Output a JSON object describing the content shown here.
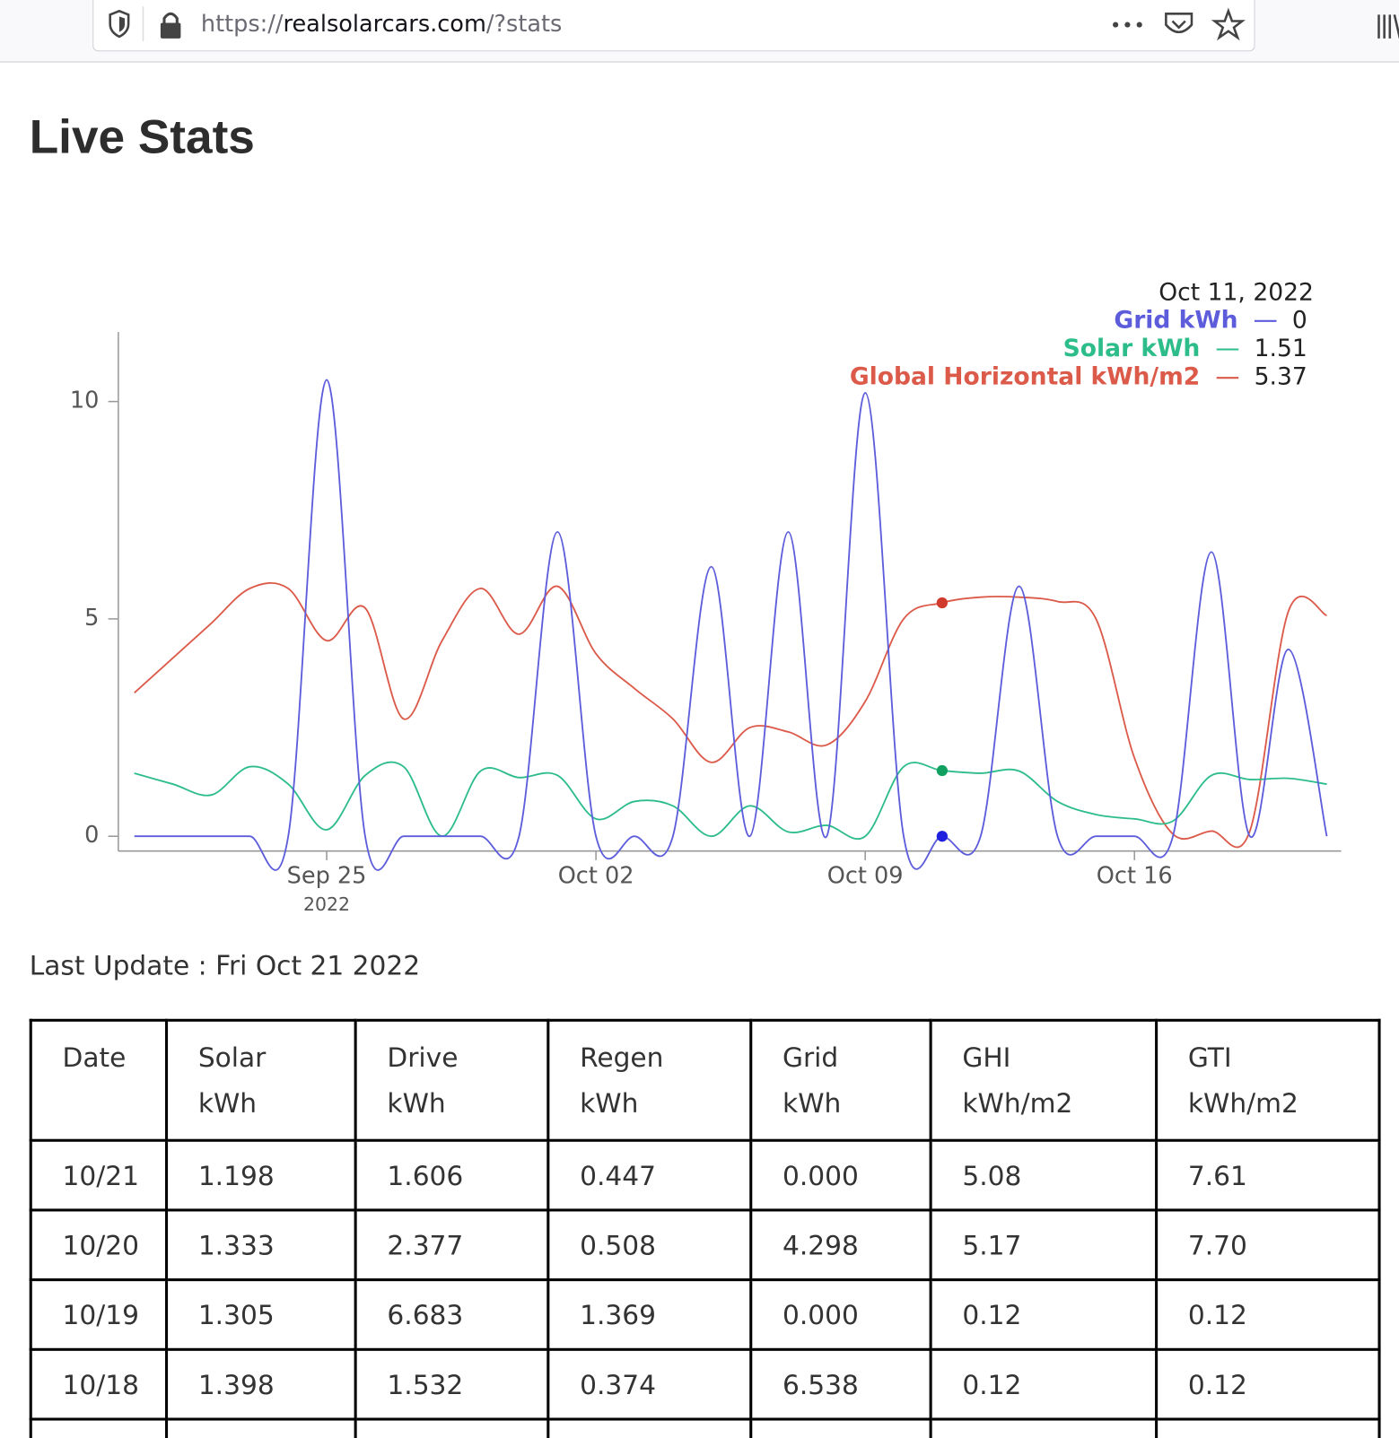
{
  "browser": {
    "url_scheme": "https://",
    "url_host": "realsolarcars.com",
    "url_path": "/?stats"
  },
  "page": {
    "title": "Live Stats",
    "last_update": "Last Update : Fri Oct 21 2022"
  },
  "chart_data": {
    "type": "line",
    "x": [
      "2022-09-20",
      "2022-09-21",
      "2022-09-22",
      "2022-09-23",
      "2022-09-24",
      "2022-09-25",
      "2022-09-26",
      "2022-09-27",
      "2022-09-28",
      "2022-09-29",
      "2022-09-30",
      "2022-10-01",
      "2022-10-02",
      "2022-10-03",
      "2022-10-04",
      "2022-10-05",
      "2022-10-06",
      "2022-10-07",
      "2022-10-08",
      "2022-10-09",
      "2022-10-10",
      "2022-10-11",
      "2022-10-12",
      "2022-10-13",
      "2022-10-14",
      "2022-10-15",
      "2022-10-16",
      "2022-10-17",
      "2022-10-18",
      "2022-10-19",
      "2022-10-20",
      "2022-10-21"
    ],
    "series": [
      {
        "name": "Grid kWh",
        "color": "#5d5ddc",
        "hover_color": "#1f1fe0",
        "values": [
          0,
          0,
          0,
          0,
          0,
          10.5,
          0,
          0,
          0,
          0,
          0,
          7.0,
          0,
          0,
          0,
          6.2,
          0,
          7.0,
          0,
          10.2,
          0,
          0,
          0,
          5.75,
          0,
          0,
          0,
          0,
          6.538,
          0,
          4.298,
          0
        ]
      },
      {
        "name": "Solar kWh",
        "color": "#2dbd8a",
        "hover_color": "#10a060",
        "values": [
          1.45,
          1.2,
          0.95,
          1.6,
          1.2,
          0.15,
          1.4,
          1.6,
          0.0,
          1.5,
          1.35,
          1.4,
          0.4,
          0.8,
          0.7,
          0.0,
          0.7,
          0.1,
          0.25,
          0.0,
          1.6,
          1.51,
          1.45,
          1.5,
          0.8,
          0.5,
          0.4,
          0.35,
          1.398,
          1.305,
          1.333,
          1.198
        ]
      },
      {
        "name": "Global Horizontal kWh/m2",
        "color": "#dc5a4a",
        "hover_color": "#d03a2c",
        "values": [
          3.3,
          4.1,
          4.9,
          5.7,
          5.7,
          4.5,
          5.25,
          2.7,
          4.5,
          5.7,
          4.65,
          5.75,
          4.2,
          3.4,
          2.7,
          1.7,
          2.5,
          2.4,
          2.1,
          3.1,
          5.0,
          5.37,
          5.5,
          5.5,
          5.4,
          5.0,
          1.8,
          0.05,
          0.12,
          0.12,
          5.17,
          5.08
        ]
      }
    ],
    "xlim": [
      "2022-09-19T14:00:00Z",
      "2022-10-21T09:00:00Z"
    ],
    "xticks": [
      {
        "value": "2022-09-25",
        "label": "Sep 25"
      },
      {
        "value": "2022-10-02",
        "label": "Oct 02"
      },
      {
        "value": "2022-10-09",
        "label": "Oct 09"
      },
      {
        "value": "2022-10-16",
        "label": "Oct 16"
      }
    ],
    "xtick_year": "2022",
    "ylim": [
      -0.34,
      11.6
    ],
    "yticks": [
      0,
      5,
      10
    ],
    "hover": {
      "index": 21,
      "label": "Oct 11, 2022"
    }
  },
  "table": {
    "columns": [
      "Date",
      "Solar kWh",
      "Drive kWh",
      "Regen kWh",
      "Grid kWh",
      "GHI kWh/m2",
      "GTI kWh/m2"
    ],
    "rows": [
      [
        "10/21",
        "1.198",
        "1.606",
        "0.447",
        "0.000",
        "5.08",
        "7.61"
      ],
      [
        "10/20",
        "1.333",
        "2.377",
        "0.508",
        "4.298",
        "5.17",
        "7.70"
      ],
      [
        "10/19",
        "1.305",
        "6.683",
        "1.369",
        "0.000",
        "0.12",
        "0.12"
      ],
      [
        "10/18",
        "1.398",
        "1.532",
        "0.374",
        "6.538",
        "0.12",
        "0.12"
      ]
    ]
  }
}
